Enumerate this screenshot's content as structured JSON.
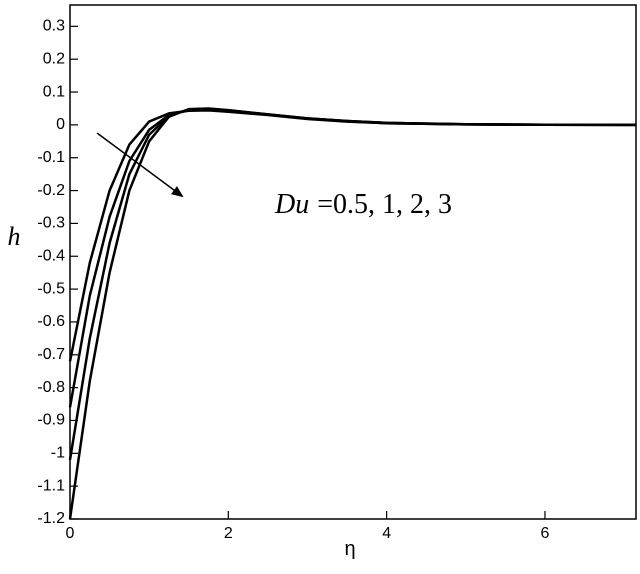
{
  "chart_data": {
    "type": "line",
    "x_label": "η",
    "y_label": "h",
    "annotation_var": "Du",
    "annotation_text": "=0.5, 1, 2, 3",
    "x": [
      0,
      0.25,
      0.5,
      0.75,
      1,
      1.25,
      1.5,
      1.75,
      2,
      2.5,
      3,
      3.5,
      4,
      5,
      6,
      7.15
    ],
    "series": [
      {
        "color": "#000000",
        "values": [
          -0.72,
          -0.42,
          -0.2,
          -0.06,
          0.01,
          0.035,
          0.043,
          0.044,
          0.04,
          0.03,
          0.018,
          0.01,
          0.005,
          0.0015,
          0.0004,
          0
        ]
      },
      {
        "color": "#000000",
        "values": [
          -0.86,
          -0.52,
          -0.28,
          -0.11,
          -0.015,
          0.03,
          0.045,
          0.047,
          0.042,
          0.031,
          0.019,
          0.011,
          0.005,
          0.0015,
          0.0004,
          0
        ]
      },
      {
        "color": "#000000",
        "values": [
          -1.02,
          -0.65,
          -0.36,
          -0.15,
          -0.03,
          0.027,
          0.047,
          0.049,
          0.044,
          0.032,
          0.02,
          0.012,
          0.006,
          0.002,
          0.0005,
          0
        ]
      },
      {
        "color": "#000000",
        "values": [
          -1.2,
          -0.78,
          -0.45,
          -0.2,
          -0.05,
          0.025,
          0.048,
          0.05,
          0.045,
          0.032,
          0.02,
          0.012,
          0.006,
          0.002,
          0.0005,
          0
        ]
      }
    ],
    "xlim": [
      0,
      7.15
    ],
    "ylim": [
      -1.2,
      0.365
    ],
    "xticks": [
      0,
      2,
      4,
      6
    ],
    "yticks": [
      0.3,
      0.2,
      0.1,
      0,
      -0.1,
      -0.2,
      -0.3,
      -0.4,
      -0.5,
      -0.6,
      -0.7,
      -0.8,
      -0.9,
      -1,
      -1.1,
      -1.2
    ]
  }
}
